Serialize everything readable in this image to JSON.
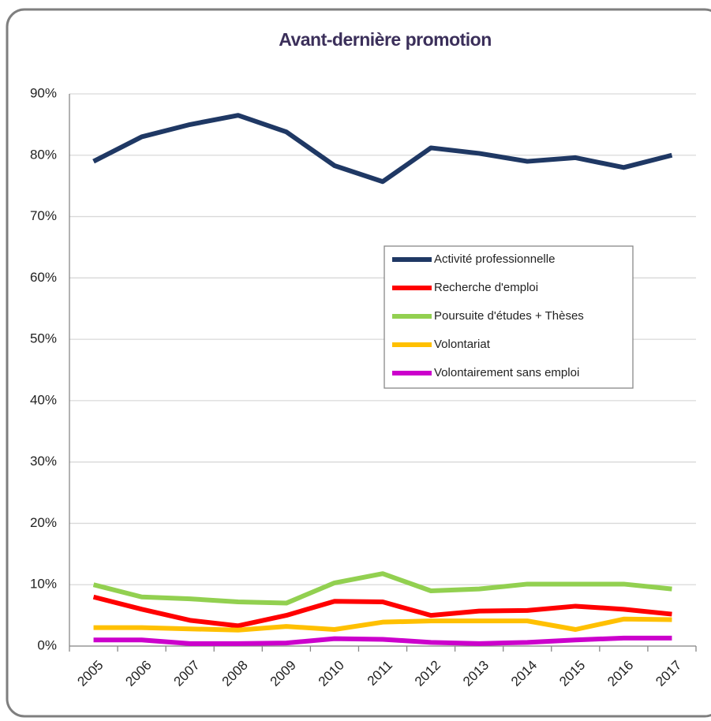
{
  "chart_data": {
    "type": "line",
    "title": "Avant-dernière promotion",
    "categories": [
      "2005",
      "2006",
      "2007",
      "2008",
      "2009",
      "2010",
      "2011",
      "2012",
      "2013",
      "2014",
      "2015",
      "2016",
      "2017"
    ],
    "series": [
      {
        "name": "Activité professionnelle",
        "color": "#1f3864",
        "values": [
          79,
          83,
          85,
          86.5,
          83.8,
          78.3,
          75.7,
          81.2,
          80.3,
          79,
          79.6,
          78,
          80
        ]
      },
      {
        "name": "Recherche d'emploi",
        "color": "#ff0000",
        "values": [
          8,
          6,
          4.2,
          3.3,
          5,
          7.3,
          7.2,
          5,
          5.7,
          5.8,
          6.5,
          6,
          5.2
        ]
      },
      {
        "name": "Poursuite d'études + Thèses",
        "color": "#92d050",
        "values": [
          10,
          8,
          7.7,
          7.2,
          7,
          10.3,
          11.8,
          9,
          9.3,
          10.1,
          10.1,
          10.1,
          9.3
        ]
      },
      {
        "name": "Volontariat",
        "color": "#ffc000",
        "values": [
          3,
          3,
          2.8,
          2.6,
          3.2,
          2.7,
          3.9,
          4.1,
          4.1,
          4.1,
          2.7,
          4.4,
          4.3
        ]
      },
      {
        "name": "Volontairement sans emploi",
        "color": "#cc00cc",
        "values": [
          1,
          1,
          0.4,
          0.4,
          0.5,
          1.2,
          1.1,
          0.6,
          0.4,
          0.6,
          1,
          1.3,
          1.3
        ]
      }
    ],
    "ylim": [
      0,
      90
    ],
    "yticks": [
      {
        "value": 0,
        "label": "0%"
      },
      {
        "value": 10,
        "label": "10%"
      },
      {
        "value": 20,
        "label": "20%"
      },
      {
        "value": 30,
        "label": "30%"
      },
      {
        "value": 40,
        "label": "40%"
      },
      {
        "value": 50,
        "label": "50%"
      },
      {
        "value": 60,
        "label": "60%"
      },
      {
        "value": 70,
        "label": "70%"
      },
      {
        "value": 80,
        "label": "80%"
      },
      {
        "value": 90,
        "label": "90%"
      }
    ],
    "grid": true,
    "legend": "center right"
  }
}
